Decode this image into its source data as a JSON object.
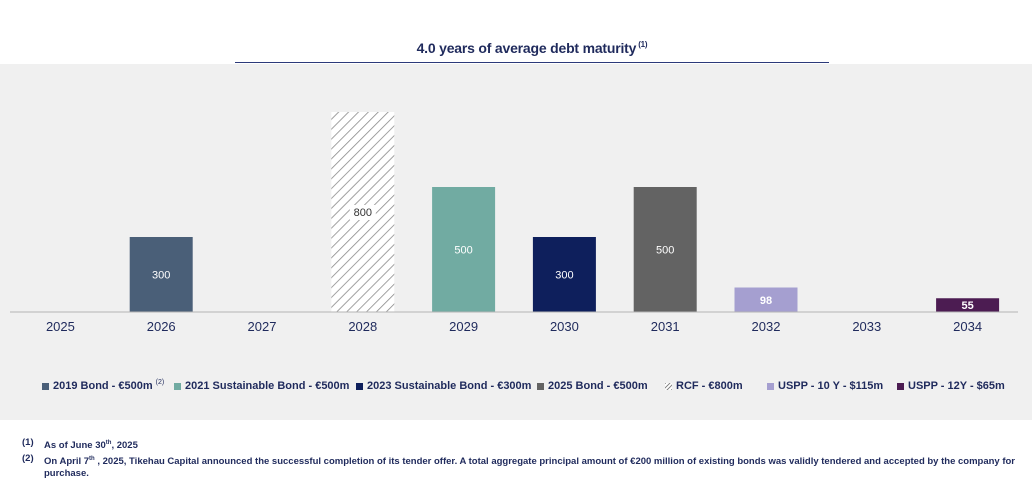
{
  "title": {
    "text": "4.0 years of average debt maturity",
    "note": "(1)"
  },
  "chart_data": {
    "type": "bar",
    "categories": [
      "2025",
      "2026",
      "2027",
      "2028",
      "2029",
      "2030",
      "2031",
      "2032",
      "2033",
      "2034"
    ],
    "bars": [
      {
        "category": "2026",
        "value": 300,
        "label": "300",
        "series": "2019 Bond - €500m"
      },
      {
        "category": "2028",
        "value": 800,
        "label": "800",
        "series": "RCF - €800m"
      },
      {
        "category": "2029",
        "value": 500,
        "label": "500",
        "series": "2021 Sustainable Bond - €500m"
      },
      {
        "category": "2030",
        "value": 300,
        "label": "300",
        "series": "2023 Sustainable Bond - €300m"
      },
      {
        "category": "2031",
        "value": 500,
        "label": "500",
        "series": "2025 Bond - €500m"
      },
      {
        "category": "2032",
        "value": 98,
        "label": "98",
        "series": "USPP - 10 Y - $115m"
      },
      {
        "category": "2034",
        "value": 55,
        "label": "55",
        "series": "USPP - 12Y - $65m"
      }
    ],
    "ylim": [
      0,
      800
    ],
    "grid": false,
    "legend_position": "bottom",
    "series": [
      {
        "name": "2019 Bond - €500m",
        "note": "(2)",
        "color": "#4a5f78",
        "pattern": "solid"
      },
      {
        "name": "2021 Sustainable Bond - €500m",
        "color": "#71aba2",
        "pattern": "solid"
      },
      {
        "name": "2023 Sustainable Bond - €300m",
        "color": "#0e1f5c",
        "pattern": "solid"
      },
      {
        "name": "2025 Bond - €500m",
        "color": "#636363",
        "pattern": "solid"
      },
      {
        "name": "RCF - €800m",
        "color": "#8a8a8a",
        "pattern": "hatch"
      },
      {
        "name": "USPP - 10 Y - $115m",
        "color": "#a59fd0",
        "pattern": "solid"
      },
      {
        "name": "USPP - 12Y - $65m",
        "color": "#4c1c52",
        "pattern": "solid"
      }
    ]
  },
  "footnotes": [
    {
      "marker": "(1)",
      "text_before": "As of June 30",
      "sup": "th",
      "text_after": ", 2025"
    },
    {
      "marker": "(2)",
      "text_before": "On April 7",
      "sup": "th",
      "text_after": " , 2025, Tikehau Capital announced the successful completion of its tender offer. A total aggregate principal amount of €200 million of existing bonds was validly tendered and accepted by the company for purchase."
    }
  ]
}
